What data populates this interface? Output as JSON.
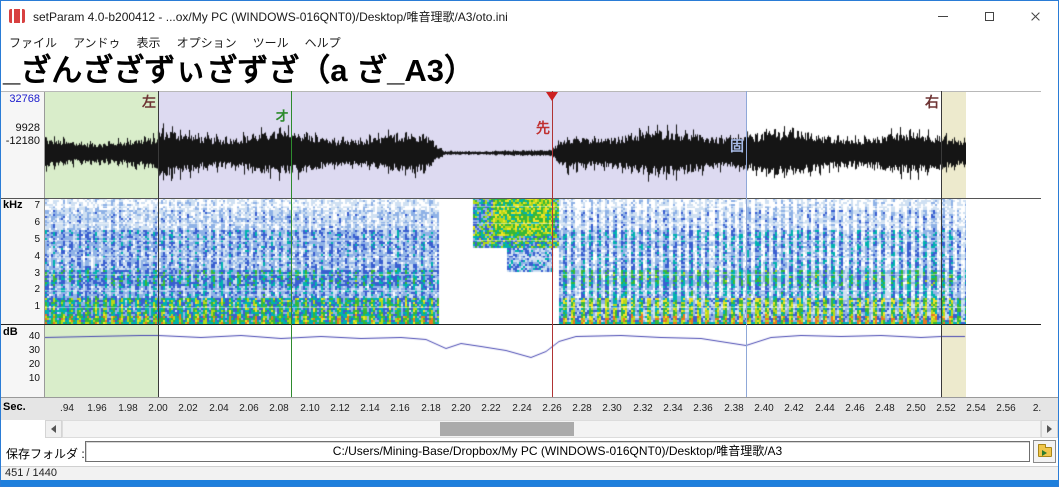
{
  "window": {
    "title": "setParam 4.0-b200412 -   ...ox/My PC (WINDOWS-016QNT0)/Desktop/唯音理歌/A3/oto.ini"
  },
  "menu": {
    "items": [
      "ファイル",
      "アンドゥ",
      "表示",
      "オプション",
      "ツール",
      "ヘルプ"
    ]
  },
  "entry": {
    "title": "_ざんざざずぃざずざ（a ざ_A3）"
  },
  "axes": {
    "amplitude": {
      "max": "32768",
      "cursor_max": "9928",
      "cursor_min": "-12180"
    },
    "freq": {
      "unit": "kHz",
      "ticks": [
        "7",
        "6",
        "5",
        "4",
        "3",
        "2",
        "1"
      ]
    },
    "level": {
      "unit": "dB",
      "ticks": [
        "40",
        "30",
        "20",
        "10"
      ]
    },
    "time": {
      "unit": "Sec.",
      "ticks": [
        ".94",
        "1.96",
        "1.98",
        "2.00",
        "2.02",
        "2.04",
        "2.06",
        "2.08",
        "2.10",
        "2.12",
        "2.14",
        "2.16",
        "2.18",
        "2.20",
        "2.22",
        "2.24",
        "2.26",
        "2.28",
        "2.30",
        "2.32",
        "2.34",
        "2.36",
        "2.38",
        "2.40",
        "2.42",
        "2.44",
        "2.46",
        "2.48",
        "2.50",
        "2.52",
        "2.54",
        "2.56",
        "2."
      ]
    }
  },
  "plot": {
    "time_start": 1.94,
    "time_end": 2.58,
    "markers": [
      {
        "id": "left",
        "label": "左",
        "time": 2.0,
        "line_color": "#3a3a3a",
        "label_color": "#6e3434"
      },
      {
        "id": "overlap",
        "label": "オ",
        "time": 2.088,
        "line_color": "#2e8b2e",
        "label_color": "#2e8b2e"
      },
      {
        "id": "preutterance",
        "label": "先",
        "time": 2.26,
        "line_color": "#b03434",
        "label_color": "#c03030",
        "flag": true
      },
      {
        "id": "fixed",
        "label": "固",
        "time": 2.388,
        "line_color": "#8fa8d8",
        "label_color": "#a8bce8"
      },
      {
        "id": "right",
        "label": "右",
        "time": 2.517,
        "line_color": "#3a3a3a",
        "label_color": "#6e3434"
      }
    ],
    "regions": {
      "before_left": "#d9edca",
      "left_to_fixed": "rgba(148,140,212,0.32)",
      "after_right": "#edeacd"
    }
  },
  "folder_bar": {
    "label": "保存フォルダ :",
    "path": "C:/Users/Mining-Base/Dropbox/My PC (WINDOWS-016QNT0)/Desktop/唯音理歌/A3"
  },
  "status_bar": {
    "text": "451 / 1440"
  }
}
